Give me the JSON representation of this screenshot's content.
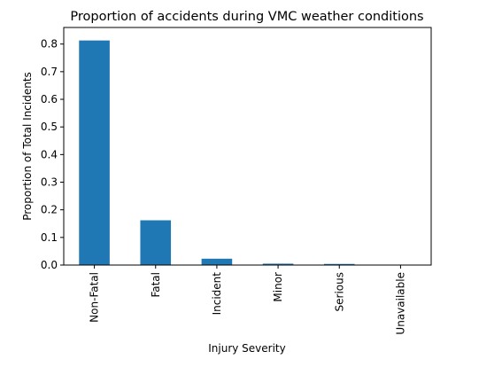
{
  "chart_data": {
    "type": "bar",
    "title": "Proportion of accidents during VMC weather conditions",
    "xlabel": "Injury Severity",
    "ylabel": "Proportion of Total Incidents",
    "categories": [
      "Non-Fatal",
      "Fatal",
      "Incident",
      "Minor",
      "Serious",
      "Unavailable"
    ],
    "values": [
      0.813,
      0.162,
      0.023,
      0.005,
      0.004,
      0.0
    ],
    "ylim": [
      0,
      0.86
    ],
    "yticks": [
      "0.0",
      "0.1",
      "0.2",
      "0.3",
      "0.4",
      "0.5",
      "0.6",
      "0.7",
      "0.8"
    ],
    "bar_color": "#1f77b4",
    "grid": false,
    "legend": "none"
  }
}
